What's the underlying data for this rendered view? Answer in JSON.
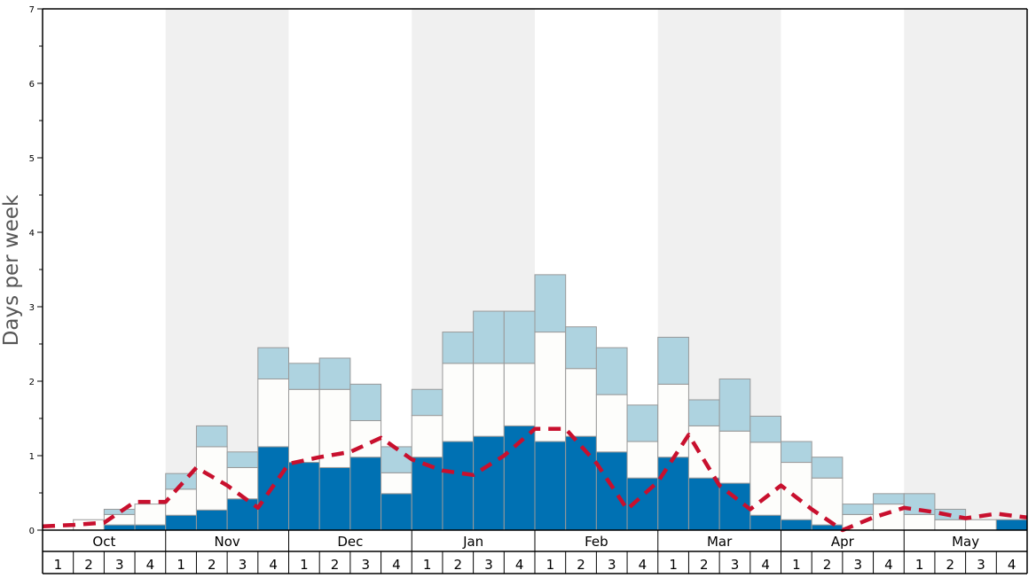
{
  "chart_data": {
    "type": "bar",
    "ylabel": "Days per week",
    "xlabel": "",
    "ylim": [
      0,
      7
    ],
    "y_ticks": [
      0,
      1,
      2,
      3,
      4,
      5,
      6,
      7
    ],
    "months": [
      "Oct",
      "Nov",
      "Dec",
      "Jan",
      "Feb",
      "Mar",
      "Apr",
      "May"
    ],
    "week_labels": [
      "1",
      "2",
      "3",
      "4"
    ],
    "month_shading": "alternating",
    "bar_style": "stacked",
    "colors": {
      "dark_segment": "#0071b3",
      "white_segment": "#fdfdfb",
      "light_segment": "#aed3e0",
      "dashed_line": "#c8102e",
      "shaded_band": "#f0f0f0",
      "bar_border": "#999999"
    },
    "series": [
      {
        "key": "dark",
        "values": [
          0,
          0,
          0.07,
          0.07,
          0.2,
          0.27,
          0.42,
          1.12,
          0.91,
          0.84,
          0.98,
          0.49,
          0.98,
          1.19,
          1.26,
          1.4,
          1.19,
          1.26,
          1.05,
          0.7,
          0.98,
          0.7,
          0.63,
          0.2,
          0.14,
          0.07,
          0,
          0,
          0,
          0,
          0,
          0.14
        ]
      },
      {
        "key": "white",
        "values": [
          0,
          0.14,
          0.14,
          0.28,
          0.35,
          0.85,
          0.42,
          0.91,
          0.98,
          1.05,
          0.49,
          0.28,
          0.56,
          1.05,
          0.98,
          0.84,
          1.47,
          0.91,
          0.77,
          0.49,
          0.98,
          0.7,
          0.7,
          0.98,
          0.77,
          0.63,
          0.21,
          0.35,
          0.21,
          0.14,
          0.14,
          0
        ]
      },
      {
        "key": "light",
        "values": [
          0,
          0,
          0.07,
          0,
          0.21,
          0.28,
          0.21,
          0.42,
          0.35,
          0.42,
          0.49,
          0.35,
          0.35,
          0.42,
          0.7,
          0.7,
          0.77,
          0.56,
          0.63,
          0.49,
          0.63,
          0.35,
          0.7,
          0.35,
          0.28,
          0.28,
          0.14,
          0.14,
          0.28,
          0.14,
          0,
          0
        ]
      }
    ],
    "line_values": [
      0.05,
      0.07,
      0.1,
      0.38,
      0.38,
      0.84,
      0.6,
      0.3,
      0.89,
      0.98,
      1.05,
      1.24,
      0.95,
      0.8,
      0.74,
      1.0,
      1.36,
      1.36,
      0.9,
      0.28,
      0.65,
      1.28,
      0.6,
      0.28,
      0.6,
      0.28,
      0.0,
      0.17,
      0.3,
      0.24,
      0.16,
      0.22,
      0.17
    ]
  }
}
